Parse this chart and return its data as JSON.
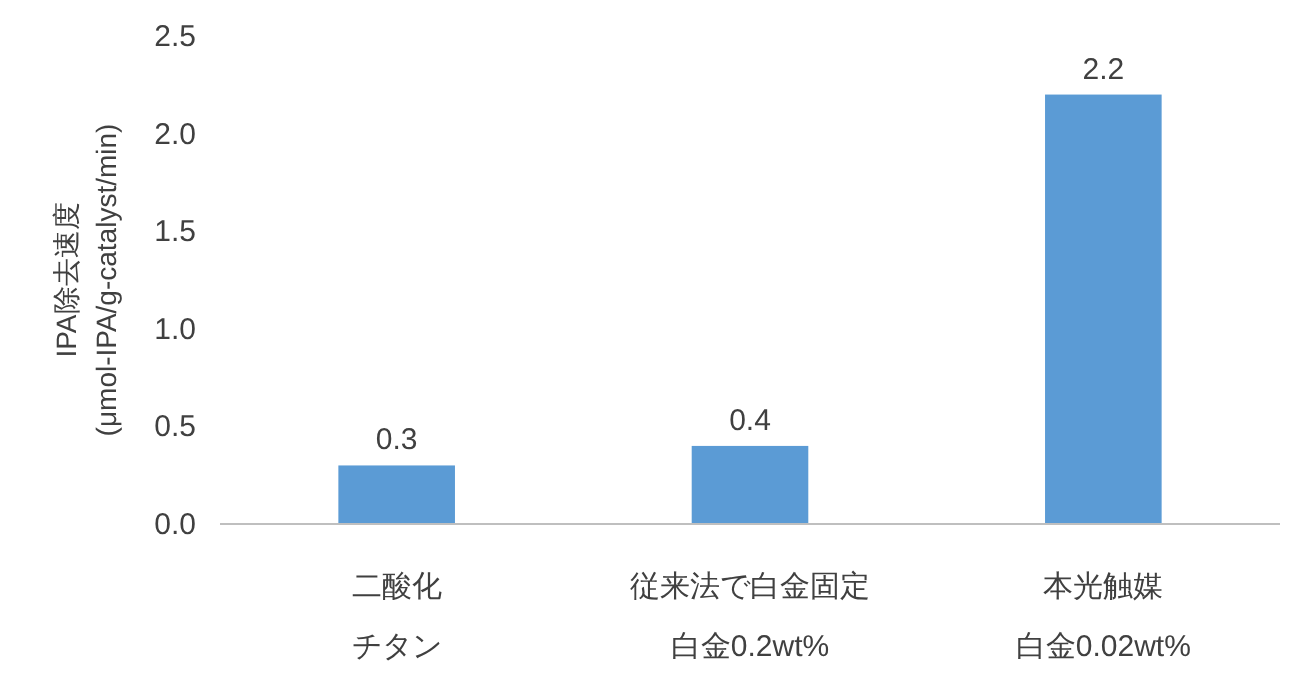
{
  "chart_data": {
    "type": "bar",
    "ylabel": "IPA除去速度\n(μmol-IPA/g-catalyst/min)",
    "categories": [
      "二酸化チタン",
      "従来法で白金固定白金0.2wt%",
      "本光触媒白金0.02wt%"
    ],
    "values": [
      0.3,
      0.4,
      2.2
    ],
    "color": "#5b9bd5",
    "ylim": [
      0,
      2.5
    ],
    "yticks": [
      {
        "value": 0,
        "label": "0.0"
      },
      {
        "value": 0.5,
        "label": "0.5"
      },
      {
        "value": 1,
        "label": "1.0"
      },
      {
        "value": 1.5,
        "label": "1.5"
      },
      {
        "value": 2,
        "label": "2.0"
      },
      {
        "value": 2.5,
        "label": "2.5"
      }
    ],
    "data_labels": true
  }
}
